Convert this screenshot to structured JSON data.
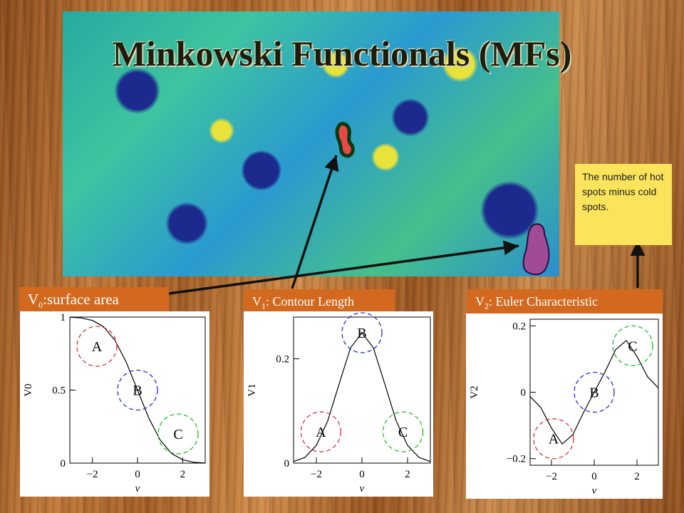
{
  "slide": {
    "title": "Minkowski Functionals (MFs)",
    "note": "The number of hot spots minus cold spots."
  },
  "labels": {
    "v0": {
      "sym": "V",
      "sub": "0",
      "text": ":surface area"
    },
    "v1": {
      "sym": "V",
      "sub": "1",
      "text": ": Contour Length"
    },
    "v2": {
      "sym": "V",
      "sub": "2",
      "text": ": Euler Characteristic"
    }
  },
  "colors": {
    "label_bg": "#d2691e",
    "note_bg": "#fbe45c",
    "circle_A": "#e03030",
    "circle_B": "#2030d0",
    "circle_C": "#20c020"
  },
  "chart_data": [
    {
      "type": "line",
      "ylabel": "V0",
      "xlabel": "ν",
      "xlim": [
        -3,
        3
      ],
      "ylim": [
        0,
        1
      ],
      "xticks": [
        "−2",
        "0",
        "2"
      ],
      "yticks": [
        "0",
        "0.5",
        "1"
      ],
      "x": [
        -3,
        -2.5,
        -2,
        -1.5,
        -1,
        -0.5,
        0,
        0.5,
        1,
        1.5,
        2,
        2.5,
        3
      ],
      "y": [
        0.999,
        0.994,
        0.977,
        0.933,
        0.841,
        0.691,
        0.5,
        0.309,
        0.159,
        0.067,
        0.023,
        0.006,
        0.001
      ],
      "annotations": [
        {
          "label": "A",
          "x": -1.8,
          "y": 0.8
        },
        {
          "label": "B",
          "x": 0,
          "y": 0.5
        },
        {
          "label": "C",
          "x": 1.8,
          "y": 0.2
        }
      ]
    },
    {
      "type": "line",
      "ylabel": "V1",
      "xlabel": "ν",
      "xlim": [
        -3,
        3
      ],
      "ylim": [
        0,
        0.28
      ],
      "xticks": [
        "−2",
        "0",
        "2"
      ],
      "yticks": [
        "0",
        "0.2"
      ],
      "x": [
        -3,
        -2.5,
        -2,
        -1.5,
        -1,
        -0.5,
        0,
        0.5,
        1,
        1.5,
        2,
        2.5,
        3
      ],
      "y": [
        0.003,
        0.011,
        0.034,
        0.081,
        0.152,
        0.221,
        0.25,
        0.221,
        0.152,
        0.081,
        0.034,
        0.011,
        0.003
      ],
      "annotations": [
        {
          "label": "A",
          "x": -1.8,
          "y": 0.06
        },
        {
          "label": "B",
          "x": 0,
          "y": 0.25
        },
        {
          "label": "C",
          "x": 1.8,
          "y": 0.06
        }
      ]
    },
    {
      "type": "line",
      "ylabel": "V2",
      "xlabel": "ν",
      "xlim": [
        -3,
        3
      ],
      "ylim": [
        -0.22,
        0.22
      ],
      "xticks": [
        "−2",
        "0",
        "2"
      ],
      "yticks": [
        "−0.2",
        "0",
        "0.2"
      ],
      "x": [
        -3,
        -2.5,
        -2,
        -1.5,
        -1,
        -0.5,
        0,
        0.5,
        1,
        1.5,
        2,
        2.5,
        3
      ],
      "y": [
        -0.013,
        -0.046,
        -0.108,
        -0.156,
        -0.128,
        -0.061,
        0,
        0.061,
        0.128,
        0.156,
        0.108,
        0.046,
        0.013
      ],
      "annotations": [
        {
          "label": "A",
          "x": -1.9,
          "y": -0.14
        },
        {
          "label": "B",
          "x": 0,
          "y": 0
        },
        {
          "label": "C",
          "x": 1.8,
          "y": 0.14
        }
      ]
    }
  ]
}
